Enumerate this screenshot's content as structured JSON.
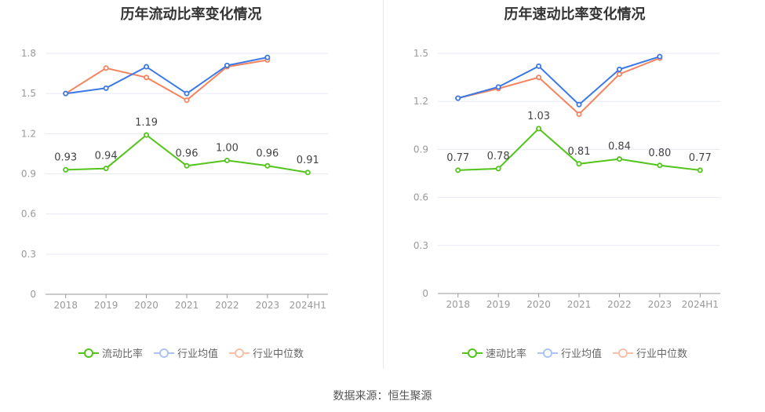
{
  "source": "数据来源：恒生聚源",
  "chart_data": [
    {
      "type": "line",
      "title": "历年流动比率变化情况",
      "categories": [
        "2018",
        "2019",
        "2020",
        "2021",
        "2022",
        "2023",
        "2024H1"
      ],
      "ylim": [
        0,
        1.8
      ],
      "yticks": [
        "0",
        "0.3",
        "0.6",
        "0.9",
        "1.2",
        "1.5",
        "1.8"
      ],
      "grid": true,
      "legend_position": "bottom",
      "series": [
        {
          "name": "流动比率",
          "color": "#52c41a",
          "values": [
            0.93,
            0.94,
            1.19,
            0.96,
            1.0,
            0.96,
            0.91
          ],
          "labels": [
            "0.93",
            "0.94",
            "1.19",
            "0.96",
            "1.00",
            "0.96",
            "0.91"
          ]
        },
        {
          "name": "行业均值",
          "color": "#3b78e7",
          "values": [
            1.5,
            1.54,
            1.7,
            1.5,
            1.71,
            1.77,
            null
          ]
        },
        {
          "name": "行业中位数",
          "color": "#f4845f",
          "values": [
            1.5,
            1.69,
            1.62,
            1.45,
            1.7,
            1.75,
            null
          ]
        }
      ]
    },
    {
      "type": "line",
      "title": "历年速动比率变化情况",
      "categories": [
        "2018",
        "2019",
        "2020",
        "2021",
        "2022",
        "2023",
        "2024H1"
      ],
      "ylim": [
        0,
        1.5
      ],
      "yticks": [
        "0",
        "0.3",
        "0.6",
        "0.9",
        "1.2",
        "1.5"
      ],
      "grid": true,
      "legend_position": "bottom",
      "series": [
        {
          "name": "速动比率",
          "color": "#52c41a",
          "values": [
            0.77,
            0.78,
            1.03,
            0.81,
            0.84,
            0.8,
            0.77
          ],
          "labels": [
            "0.77",
            "0.78",
            "1.03",
            "0.81",
            "0.84",
            "0.80",
            "0.77"
          ]
        },
        {
          "name": "行业均值",
          "color": "#3b78e7",
          "values": [
            1.22,
            1.29,
            1.42,
            1.18,
            1.4,
            1.48,
            null
          ]
        },
        {
          "name": "行业中位数",
          "color": "#f4845f",
          "values": [
            1.22,
            1.28,
            1.35,
            1.12,
            1.37,
            1.47,
            null
          ]
        }
      ]
    }
  ]
}
